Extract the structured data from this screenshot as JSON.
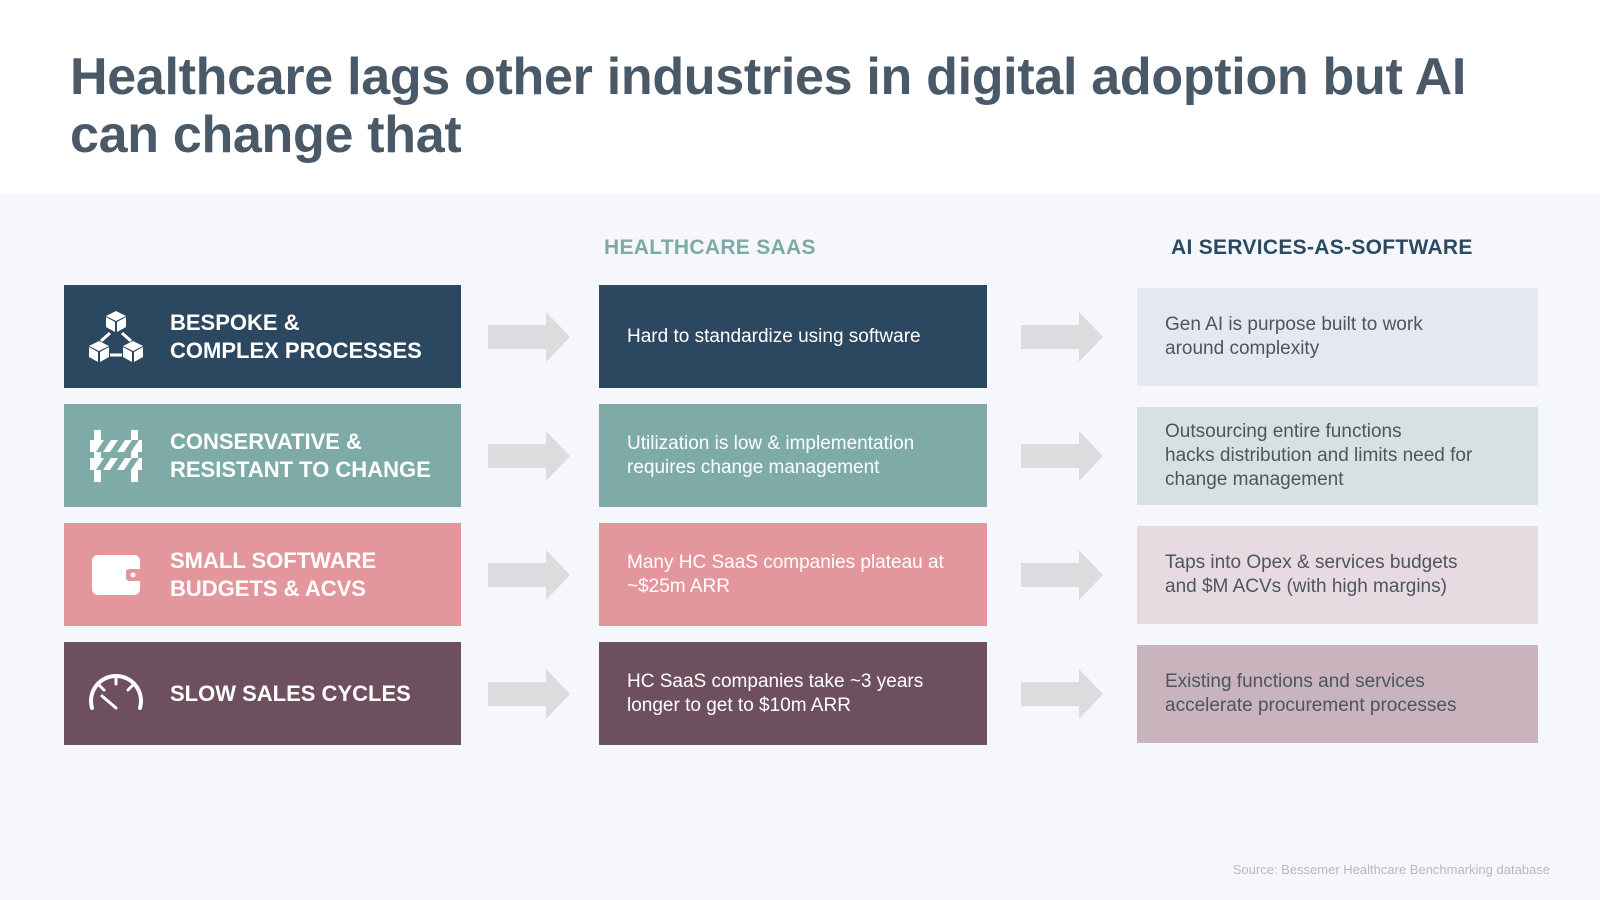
{
  "title": "Healthcare lags other industries in digital adoption but AI can change that",
  "columns": {
    "saas": "HEALTHCARE SAAS",
    "ai": "AI SERVICES-AS-SOFTWARE"
  },
  "rows": [
    {
      "icon": "cubes-network-icon",
      "category": "BESPOKE &\nCOMPLEX PROCESSES",
      "saas": "Hard to standardize using software",
      "ai": "Gen AI is purpose built to work\naround complexity",
      "colors": {
        "cat": "#2b4860",
        "mid": "#2b4860",
        "ai": "#e5e7f1"
      }
    },
    {
      "icon": "barricade-icon",
      "category": "CONSERVATIVE &\nRESISTANT TO CHANGE",
      "saas": "Utilization is low & implementation requires change management",
      "ai": "Outsourcing entire functions\nhacks distribution and limits need for\nchange management",
      "colors": {
        "cat": "#7eaaa7",
        "mid": "#7eaaa7",
        "ai": "#d8e1e2"
      }
    },
    {
      "icon": "wallet-icon",
      "category": "SMALL SOFTWARE\nBUDGETS & ACVS",
      "saas": "Many HC SaaS companies plateau at ~$25m ARR",
      "ai": "Taps into Opex & services budgets\nand $M ACVs (with high margins)",
      "colors": {
        "cat": "#e3979d",
        "mid": "#e3979d",
        "ai": "#e7dbe1"
      }
    },
    {
      "icon": "speedometer-icon",
      "category": "SLOW SALES CYCLES",
      "saas": "HC SaaS companies take ~3 years longer to get to $10m ARR",
      "ai": "Existing functions and services\naccelerate procurement processes",
      "colors": {
        "cat": "#6d4f5e",
        "mid": "#6d4f5e",
        "ai": "#c9b3bd"
      }
    }
  ],
  "source": "Source: Bessemer Healthcare Benchmarking database",
  "arrow_color": "#dcdcdf"
}
